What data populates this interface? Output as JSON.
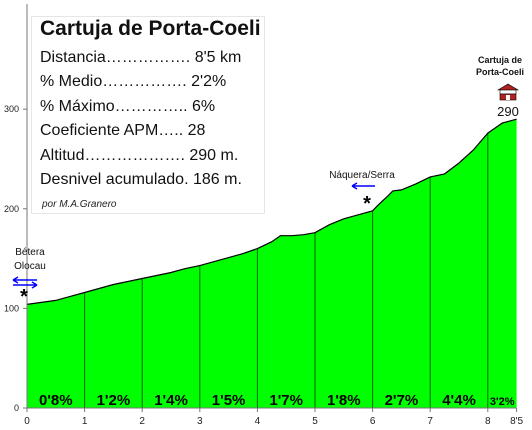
{
  "chart_data": {
    "type": "area",
    "title": "Cartuja de Porta-Coeli",
    "info_lines": [
      "Distancia……………. 8'5 km",
      "% Medio……………. 2'2%",
      "% Máximo………….. 6%",
      "Coeficiente APM….. 28",
      "Altitud………………. 290 m.",
      "Desnivel acumulado. 186 m."
    ],
    "author": "por M.A.Granero",
    "x_ticks": [
      "0",
      "1",
      "2",
      "3",
      "4",
      "5",
      "6",
      "7",
      "8",
      "8'5"
    ],
    "y_ticks": [
      "0",
      "100",
      "200",
      "300"
    ],
    "xlim": [
      0,
      8.5
    ],
    "ylim": [
      0,
      300
    ],
    "grid": false,
    "fill_color": "#00ff00",
    "line_color": "#000000",
    "segment_line_color": "#006400",
    "x": [
      0,
      0.25,
      0.5,
      0.75,
      1,
      1.25,
      1.5,
      1.75,
      2,
      2.25,
      2.5,
      2.75,
      3,
      3.25,
      3.5,
      3.75,
      4,
      4.25,
      4.4,
      4.6,
      4.8,
      5,
      5.25,
      5.5,
      5.75,
      6,
      6.1,
      6.25,
      6.35,
      6.5,
      6.75,
      7,
      7.25,
      7.5,
      7.75,
      8,
      8.25,
      8.5
    ],
    "y": [
      104,
      106,
      108,
      112,
      116,
      120,
      124,
      127,
      130,
      133,
      136,
      140,
      143,
      147,
      151,
      155,
      160,
      167,
      173,
      173,
      174,
      176,
      184,
      190,
      194,
      198,
      204,
      212,
      218,
      219,
      225,
      232,
      235,
      246,
      259,
      276,
      286,
      290
    ],
    "segments": [
      {
        "km": 1,
        "grade": "0'8%"
      },
      {
        "km": 2,
        "grade": "1'2%"
      },
      {
        "km": 3,
        "grade": "1'4%"
      },
      {
        "km": 4,
        "grade": "1'5%"
      },
      {
        "km": 5,
        "grade": "1'7%"
      },
      {
        "km": 6,
        "grade": "1'8%"
      },
      {
        "km": 7,
        "grade": "2'7%"
      },
      {
        "km": 8,
        "grade": "4'4%"
      },
      {
        "km": 8.5,
        "grade": "3'2%"
      }
    ],
    "annotations": {
      "start_label_1": "Bétera",
      "start_label_2": "Olocau",
      "start_marker": "*",
      "junction_label": "Náquera/Serra",
      "junction_marker": "*",
      "end_label_1": "Cartuja de",
      "end_label_2": "Porta-Coeli",
      "end_altitude": "290"
    },
    "arrow_color": "#0000ff",
    "end_icon": "monastery-icon",
    "end_icon_color": "#b22222"
  }
}
